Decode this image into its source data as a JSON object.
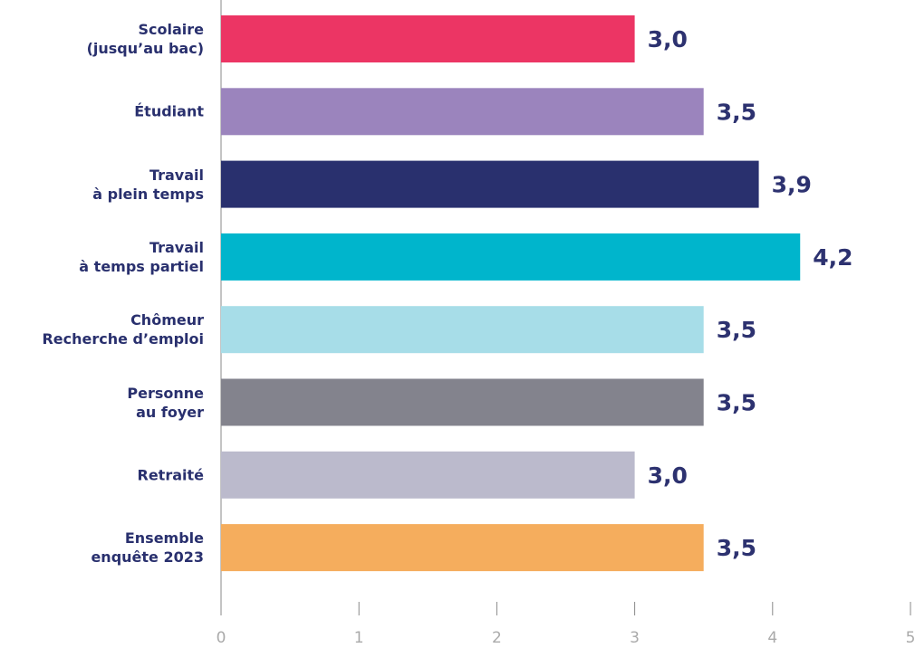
{
  "chart_data": {
    "type": "bar",
    "orientation": "horizontal",
    "categories": [
      "Scolaire\n(jusqu’au bac)",
      "Étudiant",
      "Travail\nà plein temps",
      "Travail\nà temps partiel",
      "Chômeur\nRecherche d’emploi",
      "Personne\nau foyer",
      "Retraité",
      "Ensemble\nenquête 2023"
    ],
    "values": [
      3.0,
      3.5,
      3.9,
      4.2,
      3.5,
      3.5,
      3.0,
      3.5
    ],
    "value_labels": [
      "3,0",
      "3,5",
      "3,9",
      "4,2",
      "3,5",
      "3,5",
      "3,0",
      "3,5"
    ],
    "colors": [
      "#ec3564",
      "#9b84bd",
      "#29306e",
      "#00b5cc",
      "#a7dde8",
      "#83838d",
      "#bbbacc",
      "#f5ad5d"
    ],
    "xlim": [
      0,
      5
    ],
    "xticks": [
      0,
      1,
      2,
      3,
      4,
      5
    ],
    "grid": false
  }
}
